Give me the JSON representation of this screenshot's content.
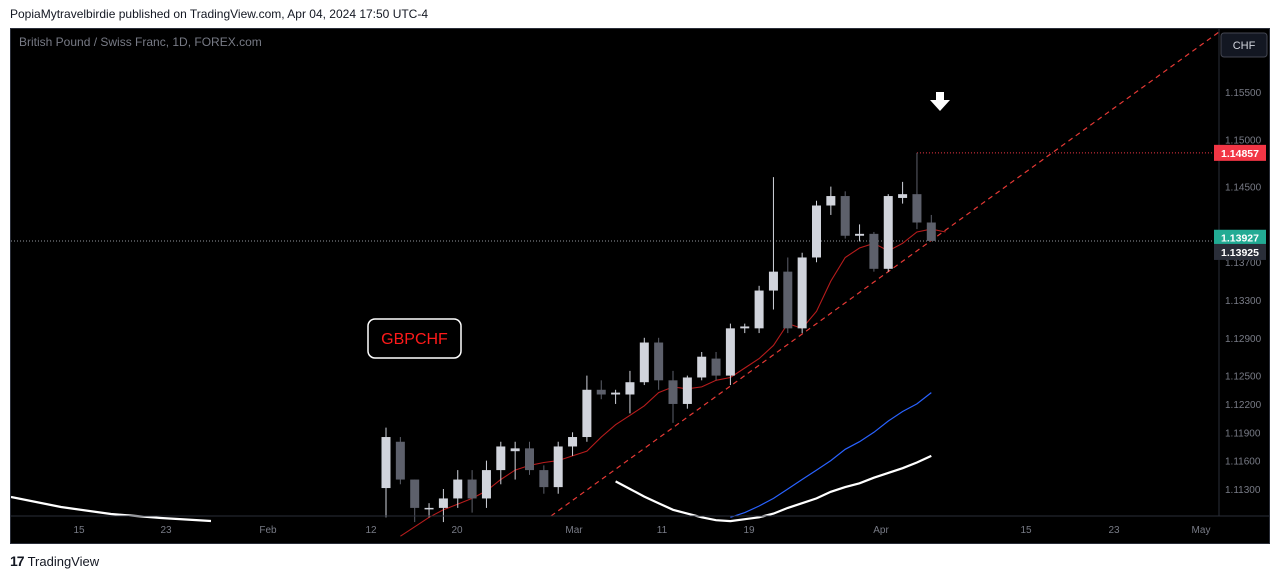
{
  "header": {
    "text": "PopiaMytravelbirdie published on TradingView.com, Apr 04, 2024 17:50 UTC-4"
  },
  "footer": {
    "logo_icon": "tradingview-logo-icon",
    "brand": "TradingView"
  },
  "colors": {
    "background": "#000000",
    "bull_candle": "#d1d4dc",
    "bear_candle": "#5d606b",
    "ema_red": "#b71c1c",
    "ma_blue": "#2962ff",
    "ma_white": "#ffffff",
    "trendline": "#e53935",
    "last_price_label": "#f23645",
    "current_price_label": "#22ab94",
    "text_muted": "#787b86"
  },
  "chart_data": {
    "type": "candlestick",
    "title": "British Pound / Swiss Franc, 1D, FOREX.com",
    "currency_badge": "CHF",
    "annotation": "GBPCHF",
    "y_ticks": [
      "1.15500",
      "1.15000",
      "1.14500",
      "1.13700",
      "1.13300",
      "1.12900",
      "1.12500",
      "1.12200",
      "1.11900",
      "1.11600",
      "1.11300"
    ],
    "x_ticks": [
      "15",
      "23",
      "Feb",
      "12",
      "20",
      "Mar",
      "11",
      "19",
      "Apr",
      "15",
      "23",
      "May"
    ],
    "price_labels": [
      {
        "value": "1.14857",
        "kind": "high"
      },
      {
        "value": "1.13927",
        "kind": "current"
      },
      {
        "value": "1.13925",
        "kind": "close"
      }
    ],
    "candles": [
      {
        "o": 1.1131,
        "h": 1.1195,
        "l": 1.11,
        "c": 1.1185
      },
      {
        "o": 1.118,
        "h": 1.1185,
        "l": 1.1135,
        "c": 1.114
      },
      {
        "o": 1.114,
        "h": 1.114,
        "l": 1.1095,
        "c": 1.111
      },
      {
        "o": 1.111,
        "h": 1.1115,
        "l": 1.11,
        "c": 1.111
      },
      {
        "o": 1.111,
        "h": 1.113,
        "l": 1.1095,
        "c": 1.112
      },
      {
        "o": 1.112,
        "h": 1.115,
        "l": 1.111,
        "c": 1.114
      },
      {
        "o": 1.114,
        "h": 1.115,
        "l": 1.1105,
        "c": 1.112
      },
      {
        "o": 1.112,
        "h": 1.116,
        "l": 1.111,
        "c": 1.115
      },
      {
        "o": 1.115,
        "h": 1.118,
        "l": 1.1135,
        "c": 1.1175
      },
      {
        "o": 1.117,
        "h": 1.118,
        "l": 1.114,
        "c": 1.1173
      },
      {
        "o": 1.1173,
        "h": 1.118,
        "l": 1.1145,
        "c": 1.115
      },
      {
        "o": 1.115,
        "h": 1.1155,
        "l": 1.1125,
        "c": 1.1132
      },
      {
        "o": 1.1132,
        "h": 1.118,
        "l": 1.1125,
        "c": 1.1175
      },
      {
        "o": 1.1175,
        "h": 1.119,
        "l": 1.1165,
        "c": 1.1185
      },
      {
        "o": 1.1185,
        "h": 1.125,
        "l": 1.118,
        "c": 1.1235
      },
      {
        "o": 1.1235,
        "h": 1.1245,
        "l": 1.1225,
        "c": 1.123
      },
      {
        "o": 1.123,
        "h": 1.1235,
        "l": 1.122,
        "c": 1.1232
      },
      {
        "o": 1.123,
        "h": 1.1255,
        "l": 1.121,
        "c": 1.1243
      },
      {
        "o": 1.1243,
        "h": 1.129,
        "l": 1.124,
        "c": 1.1285
      },
      {
        "o": 1.1285,
        "h": 1.129,
        "l": 1.1235,
        "c": 1.1245
      },
      {
        "o": 1.1245,
        "h": 1.1255,
        "l": 1.12,
        "c": 1.122
      },
      {
        "o": 1.122,
        "h": 1.125,
        "l": 1.1215,
        "c": 1.1248
      },
      {
        "o": 1.1248,
        "h": 1.1275,
        "l": 1.1245,
        "c": 1.127
      },
      {
        "o": 1.1268,
        "h": 1.1275,
        "l": 1.1245,
        "c": 1.125
      },
      {
        "o": 1.125,
        "h": 1.1305,
        "l": 1.124,
        "c": 1.13
      },
      {
        "o": 1.13,
        "h": 1.1305,
        "l": 1.1295,
        "c": 1.1302
      },
      {
        "o": 1.13,
        "h": 1.1345,
        "l": 1.1295,
        "c": 1.134
      },
      {
        "o": 1.134,
        "h": 1.146,
        "l": 1.132,
        "c": 1.136
      },
      {
        "o": 1.136,
        "h": 1.1375,
        "l": 1.1295,
        "c": 1.13
      },
      {
        "o": 1.13,
        "h": 1.138,
        "l": 1.1295,
        "c": 1.1375
      },
      {
        "o": 1.1375,
        "h": 1.1435,
        "l": 1.137,
        "c": 1.143
      },
      {
        "o": 1.143,
        "h": 1.145,
        "l": 1.142,
        "c": 1.144
      },
      {
        "o": 1.144,
        "h": 1.1445,
        "l": 1.1395,
        "c": 1.1398
      },
      {
        "o": 1.1398,
        "h": 1.141,
        "l": 1.1392,
        "c": 1.14
      },
      {
        "o": 1.14,
        "h": 1.1402,
        "l": 1.136,
        "c": 1.1363
      },
      {
        "o": 1.1363,
        "h": 1.1442,
        "l": 1.136,
        "c": 1.144
      },
      {
        "o": 1.1438,
        "h": 1.1455,
        "l": 1.1432,
        "c": 1.1442
      },
      {
        "o": 1.1442,
        "h": 1.14857,
        "l": 1.1405,
        "c": 1.1412
      },
      {
        "o": 1.1412,
        "h": 1.142,
        "l": 1.1395,
        "c": 1.13925
      }
    ],
    "ema_red": [
      1.108,
      1.109,
      1.11,
      1.1108,
      1.1114,
      1.112,
      1.1128,
      1.114,
      1.115,
      1.1155,
      1.1158,
      1.116,
      1.1165,
      1.117,
      1.1185,
      1.1198,
      1.1208,
      1.1218,
      1.1232,
      1.1238,
      1.1236,
      1.1238,
      1.1245,
      1.1248,
      1.1258,
      1.1268,
      1.1282,
      1.1305,
      1.13,
      1.1318,
      1.135,
      1.1375,
      1.1385,
      1.139,
      1.1382,
      1.139,
      1.1402,
      1.1405,
      1.1402
    ],
    "ma_blue": [
      1.11,
      1.1105,
      1.1112,
      1.112,
      1.113,
      1.114,
      1.115,
      1.116,
      1.1172,
      1.118,
      1.119,
      1.1202,
      1.1212,
      1.122,
      1.1232
    ],
    "ma_white": [
      1.1138,
      1.113,
      1.1122,
      1.1115,
      1.1108,
      1.1104,
      1.11,
      1.1097,
      1.1096,
      1.1098,
      1.11,
      1.1104,
      1.111,
      1.1115,
      1.112,
      1.1127,
      1.1132,
      1.1136,
      1.1142,
      1.1147,
      1.1152,
      1.1158,
      1.1165
    ]
  }
}
